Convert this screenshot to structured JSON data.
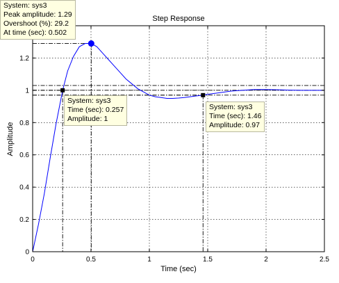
{
  "chart_data": {
    "type": "line",
    "title": "Step Response",
    "xlabel": "Time (sec)",
    "ylabel": "Amplitude",
    "xlim": [
      0,
      2.5
    ],
    "ylim": [
      0,
      1.4
    ],
    "grid": true,
    "x_ticks": [
      "0",
      "0.5",
      "1",
      "1.5",
      "2",
      "2.5"
    ],
    "y_ticks": [
      "0",
      "0.2",
      "0.4",
      "0.6",
      "0.8",
      "1",
      "1.2"
    ],
    "series": [
      {
        "name": "sys3",
        "color": "#0000ff",
        "x": [
          0,
          0.05,
          0.1,
          0.15,
          0.2,
          0.257,
          0.3,
          0.35,
          0.4,
          0.45,
          0.502,
          0.55,
          0.6,
          0.65,
          0.7,
          0.75,
          0.8,
          0.85,
          0.9,
          0.95,
          1.0,
          1.05,
          1.1,
          1.15,
          1.2,
          1.25,
          1.3,
          1.35,
          1.4,
          1.46,
          1.5,
          1.6,
          1.7,
          1.8,
          1.9,
          2.0,
          2.1,
          2.2,
          2.3,
          2.4,
          2.5
        ],
        "y": [
          0,
          0.17,
          0.36,
          0.58,
          0.79,
          1.0,
          1.12,
          1.21,
          1.27,
          1.29,
          1.29,
          1.27,
          1.23,
          1.19,
          1.15,
          1.11,
          1.07,
          1.04,
          1.01,
          0.99,
          0.97,
          0.96,
          0.955,
          0.95,
          0.95,
          0.952,
          0.955,
          0.96,
          0.965,
          0.97,
          0.975,
          0.985,
          0.995,
          1.0,
          1.005,
          1.005,
          1.003,
          1.001,
          1.0,
          1.0,
          1.0
        ]
      }
    ],
    "reference_lines": {
      "final_value": 1,
      "settling_band": [
        0.97,
        1.03
      ]
    },
    "markers": [
      {
        "x": 0.502,
        "y": 1.29,
        "color": "#0000ff"
      },
      {
        "x": 0.257,
        "y": 1.0,
        "color": "#000000"
      },
      {
        "x": 1.46,
        "y": 0.97,
        "color": "#000000"
      }
    ],
    "annotations": [
      {
        "lines": [
          "System: sys3",
          "Peak amplitude: 1.29",
          "Overshoot (%): 29.2",
          "At time (sec): 0.502"
        ]
      },
      {
        "lines": [
          "System: sys3",
          "Time (sec): 0.257",
          "Amplitude: 1"
        ]
      },
      {
        "lines": [
          "System: sys3",
          "Time (sec): 1.46",
          "Amplitude: 0.97"
        ]
      }
    ]
  }
}
